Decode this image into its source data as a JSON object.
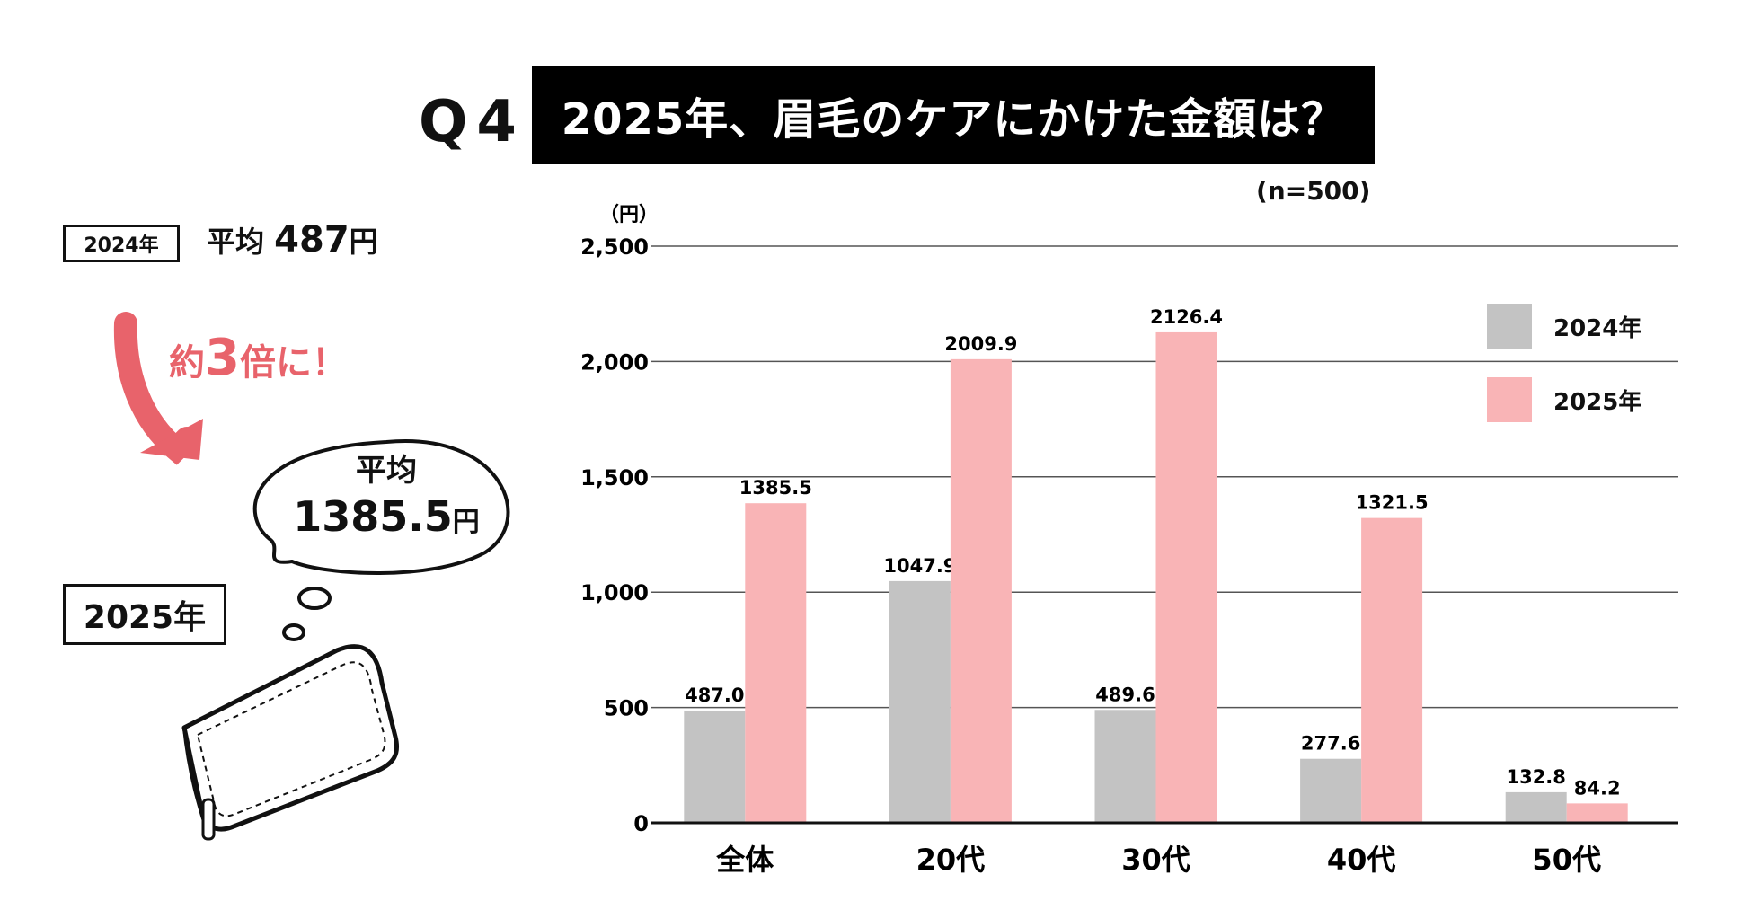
{
  "header": {
    "q_label": "Q4",
    "title": "2025年、眉毛のケアにかけた金額は？",
    "sample_size": "(n=500)"
  },
  "left_panel": {
    "box_2024": "2024年",
    "avg_2024_prefix": "平均",
    "avg_2024_value": "487",
    "avg_2024_unit": "円",
    "times_prefix": "約",
    "times_num": "3",
    "times_suffix": "倍に！",
    "bubble_label": "平均",
    "bubble_value": "1385.5",
    "bubble_unit": "円",
    "box_2025": "2025年",
    "arrow_color": "#e8636b",
    "illustration": "wallet-icon"
  },
  "chart_data": {
    "type": "bar",
    "ylabel": "（円）",
    "ylim": [
      0,
      2500
    ],
    "yticks": [
      0,
      500,
      1000,
      1500,
      2000,
      2500
    ],
    "ytick_labels": [
      "0",
      "500",
      "1,000",
      "1,500",
      "2,000",
      "2,500"
    ],
    "grid": true,
    "legend_position": "top-right",
    "categories": [
      "全体",
      "20代",
      "30代",
      "40代",
      "50代"
    ],
    "series": [
      {
        "name": "2024年",
        "color": "#c3c3c3",
        "values": [
          487.0,
          1047.9,
          489.6,
          277.6,
          132.8
        ],
        "labels": [
          "487.0",
          "1047.9",
          "489.6",
          "277.6",
          "132.8"
        ]
      },
      {
        "name": "2025年",
        "color": "#f9b4b6",
        "values": [
          1385.5,
          2009.9,
          2126.4,
          1321.5,
          84.2
        ],
        "labels": [
          "1385.5",
          "2009.9",
          "2126.4",
          "1321.5",
          "84.2"
        ]
      }
    ]
  }
}
